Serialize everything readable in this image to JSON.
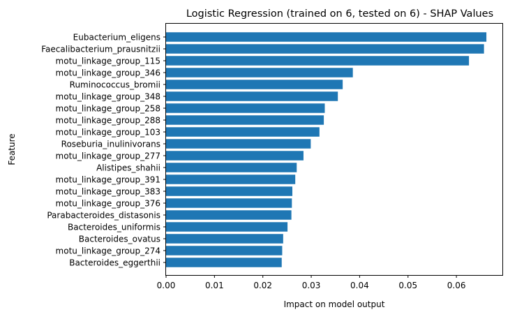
{
  "chart_data": {
    "type": "bar",
    "orientation": "horizontal",
    "title": "Logistic Regression (trained on 6, tested on 6) -  SHAP Values",
    "xlabel": "Impact on model output",
    "ylabel": "Feature",
    "xlim": [
      0,
      0.0695
    ],
    "xticks": [
      "0.00",
      "0.01",
      "0.02",
      "0.03",
      "0.04",
      "0.05",
      "0.06"
    ],
    "categories": [
      "Eubacterium_eligens",
      "Faecalibacterium_prausnitzii",
      "motu_linkage_group_115",
      "motu_linkage_group_346",
      "Ruminococcus_bromii",
      "motu_linkage_group_348",
      "motu_linkage_group_258",
      "motu_linkage_group_288",
      "motu_linkage_group_103",
      "Roseburia_inulinivorans",
      "motu_linkage_group_277",
      "Alistipes_shahii",
      "motu_linkage_group_391",
      "motu_linkage_group_383",
      "motu_linkage_group_376",
      "Parabacteroides_distasonis",
      "Bacteroides_uniformis",
      "Bacteroides_ovatus",
      "motu_linkage_group_274",
      "Bacteroides_eggerthii"
    ],
    "values": [
      0.0662,
      0.0657,
      0.0626,
      0.0386,
      0.0365,
      0.0355,
      0.0328,
      0.0326,
      0.0317,
      0.0299,
      0.0284,
      0.027,
      0.0267,
      0.0261,
      0.026,
      0.0259,
      0.0251,
      0.0242,
      0.024,
      0.0239
    ],
    "bar_color": "#1f77b4",
    "grid": false
  }
}
